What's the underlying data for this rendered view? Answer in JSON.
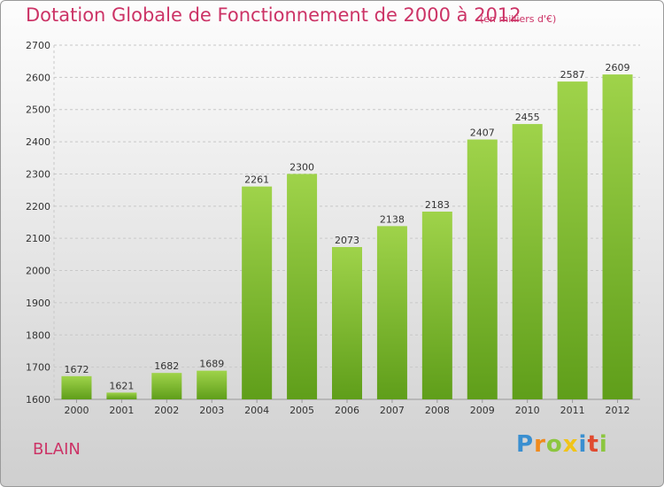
{
  "title": "Dotation Globale de Fonctionnement de 2000 à 2012",
  "subtitle": "(en milliers d'€)",
  "commune": "BLAIN",
  "logo": {
    "text": "Proxiti",
    "letters": [
      {
        "ch": "P",
        "color": "#3a8fd0"
      },
      {
        "ch": "r",
        "color": "#f08a1c"
      },
      {
        "ch": "o",
        "color": "#8cc63f"
      },
      {
        "ch": "x",
        "color": "#f0c419"
      },
      {
        "ch": "i",
        "color": "#3a8fd0"
      },
      {
        "ch": "t",
        "color": "#e04a2f"
      },
      {
        "ch": "i",
        "color": "#8cc63f"
      }
    ]
  },
  "colors": {
    "title": "#cc3366",
    "bar_light": "#9fd34a",
    "bar_dark": "#5f9e1a",
    "grid": "#c8c8c8",
    "axis_text": "#333333"
  },
  "chart_data": {
    "type": "bar",
    "categories": [
      "2000",
      "2001",
      "2002",
      "2003",
      "2004",
      "2005",
      "2006",
      "2007",
      "2008",
      "2009",
      "2010",
      "2011",
      "2012"
    ],
    "values": [
      1672,
      1621,
      1682,
      1689,
      2261,
      2300,
      2073,
      2138,
      2183,
      2407,
      2455,
      2587,
      2609
    ],
    "ylim": [
      1600,
      2700
    ],
    "yticks": [
      1600,
      1700,
      1800,
      1900,
      2000,
      2100,
      2200,
      2300,
      2400,
      2500,
      2600,
      2700
    ],
    "grid": true,
    "xlabel": "",
    "ylabel": ""
  }
}
